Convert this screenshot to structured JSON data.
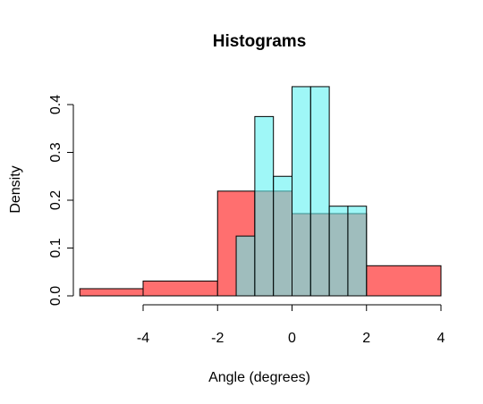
{
  "chart_data": {
    "type": "histogram",
    "title": "Histograms",
    "xlabel": "Angle (degrees)",
    "ylabel": "Density",
    "xlim": [
      -5.7,
      4.0
    ],
    "ylim": [
      0,
      0.44
    ],
    "x_ticks": [
      -4,
      -2,
      0,
      2,
      4
    ],
    "x_tick_labels": [
      "-4",
      "-2",
      "0",
      "2",
      "4"
    ],
    "y_ticks": [
      0.0,
      0.1,
      0.2,
      0.3,
      0.4
    ],
    "y_tick_labels": [
      "0.0",
      "0.1",
      "0.2",
      "0.3",
      "0.4"
    ],
    "grid": false,
    "series": [
      {
        "color": "#ff6f6f",
        "bins": [
          {
            "x0": -5.7,
            "x1": -4.0,
            "density": 0.015
          },
          {
            "x0": -4.0,
            "x1": -2.0,
            "density": 0.031
          },
          {
            "x0": -2.0,
            "x1": -1.0,
            "density": 0.219
          },
          {
            "x0": -1.0,
            "x1": 0.0,
            "density": 0.219
          },
          {
            "x0": 0.0,
            "x1": 0.5,
            "density": 0.172
          },
          {
            "x0": 0.5,
            "x1": 1.0,
            "density": 0.172
          },
          {
            "x0": 1.0,
            "x1": 1.5,
            "density": 0.172
          },
          {
            "x0": 1.5,
            "x1": 2.0,
            "density": 0.172
          },
          {
            "x0": 2.0,
            "x1": 4.0,
            "density": 0.063
          }
        ]
      },
      {
        "color": "#5ff2f2",
        "bins": [
          {
            "x0": -1.5,
            "x1": -1.0,
            "density": 0.125
          },
          {
            "x0": -1.0,
            "x1": -0.5,
            "density": 0.375
          },
          {
            "x0": -0.5,
            "x1": 0.0,
            "density": 0.25
          },
          {
            "x0": 0.0,
            "x1": 0.5,
            "density": 0.4375
          },
          {
            "x0": 0.5,
            "x1": 1.0,
            "density": 0.4375
          },
          {
            "x0": 1.0,
            "x1": 1.5,
            "density": 0.1875
          },
          {
            "x0": 1.5,
            "x1": 2.0,
            "density": 0.1875
          }
        ]
      }
    ]
  }
}
